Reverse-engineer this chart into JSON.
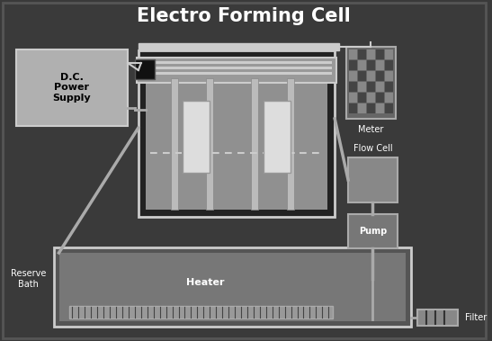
{
  "title": "Electro Forming Cell",
  "title_fontsize": 15,
  "title_color": "white",
  "title_fontweight": "bold",
  "bg_color": "#3a3a3a",
  "labels": {
    "dc_power": "D.C.\nPower\nSupply",
    "meter": "Meter",
    "flow_cell": "Flow Cell",
    "pump": "Pump",
    "reserve_bath": "Reserve\nBath",
    "heater": "Heater",
    "filter": "Filter"
  },
  "label_color": "white",
  "label_fontsize": 7,
  "light_gray": "#cccccc",
  "med_gray": "#aaaaaa",
  "dark_gray": "#555555",
  "cell_gray": "#888888",
  "dc_box_fill": "#aaaaaa",
  "meter_fill": "#888888",
  "bath_fill": "#777777"
}
